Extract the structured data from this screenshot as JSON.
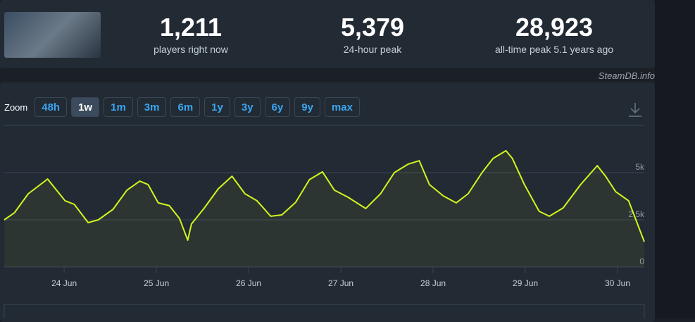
{
  "stats": [
    {
      "value": "1,211",
      "label": "players right now"
    },
    {
      "value": "5,379",
      "label": "24-hour peak"
    },
    {
      "value": "28,923",
      "label": "all-time peak 5.1 years ago"
    }
  ],
  "credit": "SteamDB.info",
  "zoom": {
    "label": "Zoom",
    "options": [
      "48h",
      "1w",
      "1m",
      "3m",
      "6m",
      "1y",
      "3y",
      "6y",
      "9y",
      "max"
    ],
    "active_index": 1
  },
  "chart_data": {
    "type": "line",
    "x": [
      23.35,
      23.46,
      23.61,
      23.82,
      24.01,
      24.11,
      24.26,
      24.37,
      24.53,
      24.68,
      24.82,
      24.91,
      25.02,
      25.14,
      25.25,
      25.34,
      25.38,
      25.52,
      25.67,
      25.82,
      25.96,
      26.09,
      26.24,
      26.36,
      26.51,
      26.66,
      26.8,
      26.93,
      27.08,
      27.27,
      27.43,
      27.58,
      27.73,
      27.85,
      27.96,
      28.11,
      28.25,
      28.38,
      28.53,
      28.65,
      28.79,
      28.86,
      28.99,
      29.15,
      29.26,
      29.41,
      29.6,
      29.78,
      29.87,
      29.98,
      30.12,
      30.29
    ],
    "series": [
      {
        "color": "#d2f51e",
        "values": [
          2500,
          2870,
          3880,
          4660,
          3510,
          3320,
          2350,
          2500,
          3060,
          4070,
          4550,
          4370,
          3400,
          3250,
          2570,
          1420,
          2280,
          3130,
          4140,
          4810,
          3880,
          3510,
          2690,
          2760,
          3430,
          4630,
          5040,
          4070,
          3690,
          3100,
          3880,
          5000,
          5450,
          5630,
          4370,
          3770,
          3400,
          3880,
          5000,
          5750,
          6160,
          5750,
          4370,
          2950,
          2690,
          3130,
          4370,
          5370,
          4810,
          3990,
          3510,
          1340
        ]
      }
    ],
    "xlim": [
      23.35,
      30.29
    ],
    "xticks": [
      {
        "value": 24,
        "label": "24 Jun"
      },
      {
        "value": 25,
        "label": "25 Jun"
      },
      {
        "value": 26,
        "label": "26 Jun"
      },
      {
        "value": 27,
        "label": "27 Jun"
      },
      {
        "value": 28,
        "label": "28 Jun"
      },
      {
        "value": 29,
        "label": "29 Jun"
      },
      {
        "value": 30,
        "label": "30 Jun"
      }
    ],
    "ylim": [
      0,
      7500
    ],
    "yticks": [
      0,
      {
        "value": 2500,
        "label": "2.5k"
      },
      {
        "value": 5000,
        "label": "5k"
      }
    ],
    "grid": true
  }
}
